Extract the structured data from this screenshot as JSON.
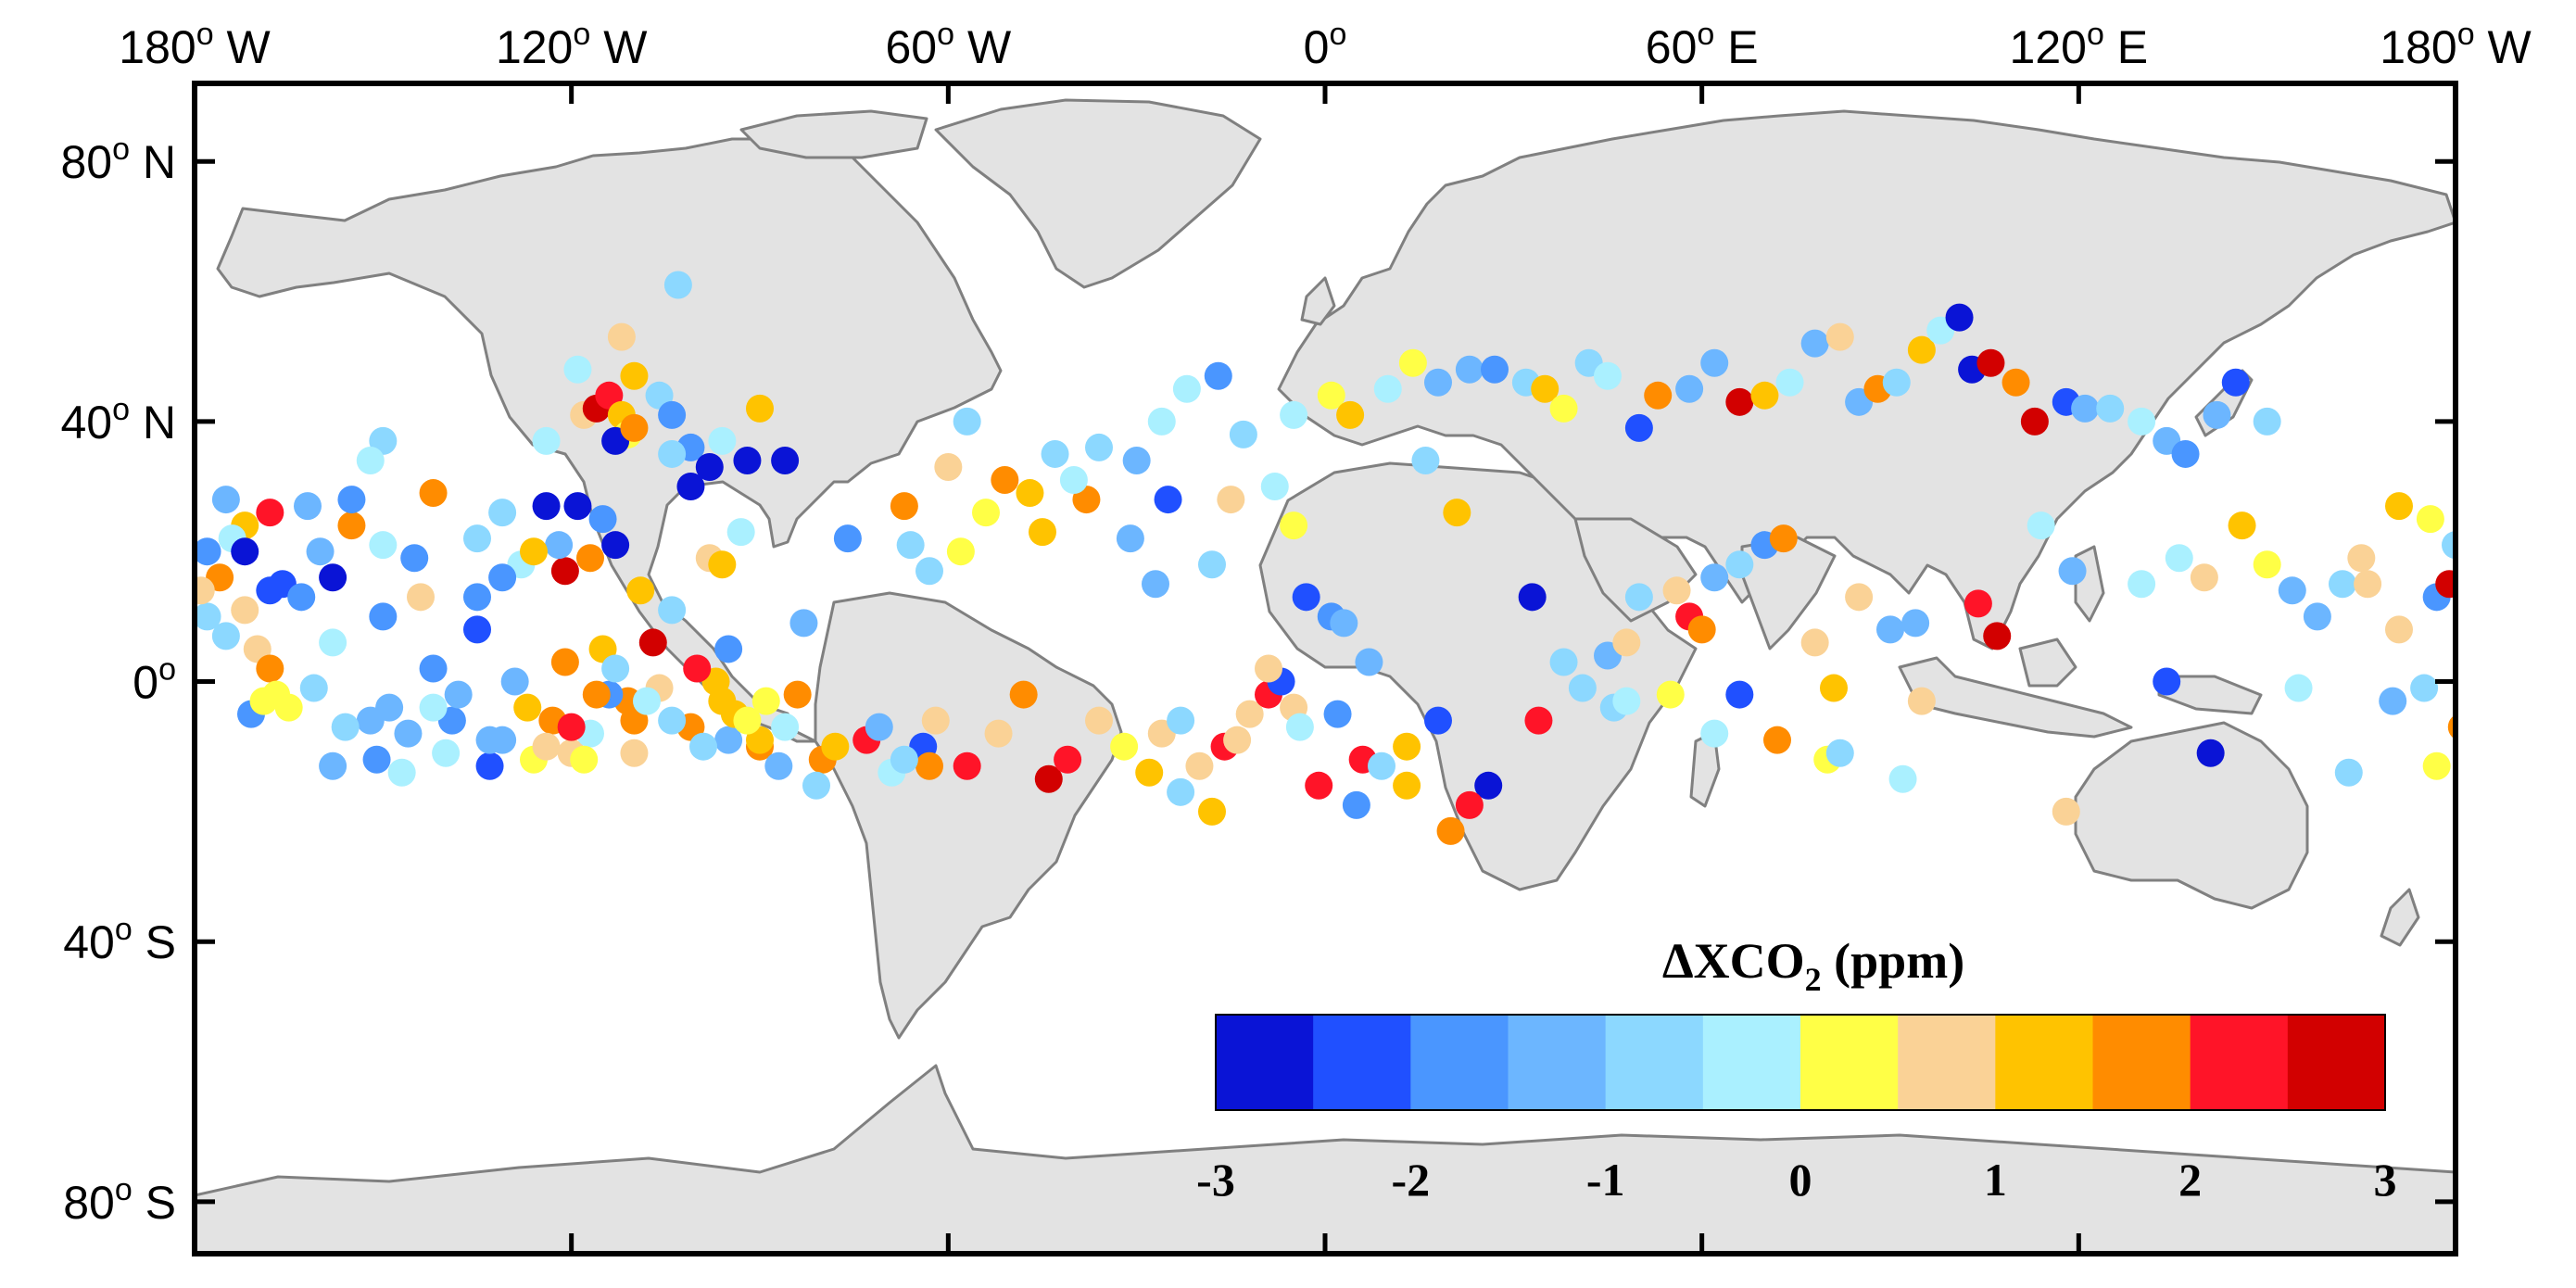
{
  "map": {
    "projection": "equirectangular",
    "lon_range": [
      -180,
      180
    ],
    "lat_range": [
      -88,
      92
    ],
    "land_color": "#e3e3e3",
    "coastline_color": "#808080",
    "ocean_color": "#ffffff",
    "x_ticks": [
      {
        "value": -180,
        "label": "180",
        "sup": "o",
        "suffix": " W"
      },
      {
        "value": -120,
        "label": "120",
        "sup": "o",
        "suffix": " W"
      },
      {
        "value": -60,
        "label": "60",
        "sup": "o",
        "suffix": " W"
      },
      {
        "value": 0,
        "label": "0",
        "sup": "o",
        "suffix": ""
      },
      {
        "value": 60,
        "label": "60",
        "sup": "o",
        "suffix": " E"
      },
      {
        "value": 120,
        "label": "120",
        "sup": "o",
        "suffix": " E"
      },
      {
        "value": 180,
        "label": "180",
        "sup": "o",
        "suffix": " W"
      }
    ],
    "y_ticks": [
      {
        "value": 80,
        "label": "80",
        "sup": "o",
        "suffix": " N"
      },
      {
        "value": 40,
        "label": "40",
        "sup": "o",
        "suffix": " N"
      },
      {
        "value": 0,
        "label": "0",
        "sup": "o",
        "suffix": ""
      },
      {
        "value": -40,
        "label": "40",
        "sup": "o",
        "suffix": " S"
      },
      {
        "value": -80,
        "label": "80",
        "sup": "o",
        "suffix": " S"
      }
    ]
  },
  "colorbar": {
    "title_delta": "Δ",
    "title_main": "XCO",
    "title_sub": "2",
    "title_unit": " (ppm)",
    "min": -3,
    "max": 3,
    "colors": [
      "#0a14d6",
      "#2050ff",
      "#4a96ff",
      "#6cb6ff",
      "#8cd8ff",
      "#aaf0ff",
      "#ffff46",
      "#fad296",
      "#ffc300",
      "#ff8c00",
      "#ff1428",
      "#d20000"
    ],
    "tick_values": [
      -3,
      -2,
      -1,
      0,
      1,
      2,
      3
    ],
    "tick_labels": [
      "-3",
      "-2",
      "-1",
      "0",
      "1",
      "2",
      "3"
    ]
  },
  "chart_data": {
    "type": "scatter",
    "x_name": "longitude",
    "y_name": "latitude",
    "value_name": "ΔXCO2 (ppm)",
    "points": [
      [
        -118,
        41,
        0.8
      ],
      [
        -116,
        42,
        2.6
      ],
      [
        -114,
        44,
        2.1
      ],
      [
        -112,
        41,
        1.4
      ],
      [
        -111,
        38,
        0.2
      ],
      [
        -113,
        37,
        -3.0
      ],
      [
        -110,
        39,
        1.8
      ],
      [
        -106,
        44,
        -0.7
      ],
      [
        -104,
        41,
        -1.6
      ],
      [
        -101,
        36,
        -1.9
      ],
      [
        -98,
        33,
        -2.9
      ],
      [
        -96,
        37,
        -0.2
      ],
      [
        -92,
        34,
        -2.8
      ],
      [
        -86,
        34,
        -3.0
      ],
      [
        -101,
        30,
        -3.0
      ],
      [
        -115,
        25,
        -1.6
      ],
      [
        -113,
        21,
        -2.8
      ],
      [
        -119,
        27,
        -2.7
      ],
      [
        -121,
        17,
        2.7
      ],
      [
        -111,
        -3,
        1.6
      ],
      [
        -115,
        5,
        1.0
      ],
      [
        -107,
        6,
        3.0
      ],
      [
        -93,
        23,
        -0.5
      ],
      [
        -124,
        37,
        -0.2
      ],
      [
        -112,
        53,
        0.8
      ],
      [
        -110,
        47,
        1.2
      ],
      [
        -103,
        61,
        -0.8
      ],
      [
        -119,
        48,
        -0.1
      ],
      [
        -104,
        35,
        -0.8
      ],
      [
        -90,
        42,
        1.3
      ],
      [
        -98,
        19,
        0.9
      ],
      [
        -96,
        18,
        1.2
      ],
      [
        -150,
        37,
        -0.9
      ],
      [
        -155,
        24,
        1.6
      ],
      [
        -158,
        16,
        -3.0
      ],
      [
        -166,
        15,
        -2.4
      ],
      [
        -168,
        14,
        -2.4
      ],
      [
        -172,
        24,
        1.2
      ],
      [
        -178,
        10,
        -0.9
      ],
      [
        -176,
        16,
        1.8
      ],
      [
        -174,
        22,
        -0.4
      ],
      [
        -170,
        5,
        0.7
      ],
      [
        -163,
        13,
        -2.0
      ],
      [
        -160,
        20,
        -1.2
      ],
      [
        -150,
        21,
        -0.2
      ],
      [
        -145,
        19,
        -1.7
      ],
      [
        -142,
        2,
        -1.9
      ],
      [
        -149,
        -4,
        -1.2
      ],
      [
        -131,
        26,
        -0.7
      ],
      [
        -135,
        8,
        -2.1
      ],
      [
        -131,
        -9,
        -1.4
      ],
      [
        -127,
        -4,
        1.0
      ],
      [
        -123,
        -6,
        1.8
      ],
      [
        -121,
        3,
        1.7
      ],
      [
        -120,
        -11,
        0.9
      ],
      [
        -117,
        -8,
        -0.1
      ],
      [
        -114,
        -2,
        -1.9
      ],
      [
        -110,
        -6,
        1.7
      ],
      [
        -101,
        -7,
        1.6
      ],
      [
        -95,
        -9,
        -1.3
      ],
      [
        -90,
        -10,
        1.7
      ],
      [
        -80,
        -12,
        1.9
      ],
      [
        -64,
        -10,
        -2.2
      ],
      [
        -63,
        -13,
        1.7
      ],
      [
        -44,
        -15,
        3.0
      ],
      [
        -26,
        -8,
        0.5
      ],
      [
        -23,
        -6,
        -0.6
      ],
      [
        -20,
        -13,
        0.7
      ],
      [
        -16,
        -10,
        2.0
      ],
      [
        -12,
        -5,
        0.5
      ],
      [
        -9,
        -2,
        2.3
      ],
      [
        -7,
        0,
        -2.3
      ],
      [
        -5,
        -4,
        0.6
      ],
      [
        2,
        -5,
        -1.6
      ],
      [
        6,
        -12,
        2.3
      ],
      [
        13,
        -16,
        1.3
      ],
      [
        26,
        -16,
        -2.8
      ],
      [
        20,
        -23,
        1.6
      ],
      [
        34,
        -6,
        2.2
      ],
      [
        46,
        -4,
        -0.7
      ],
      [
        48,
        -3,
        -0.3
      ],
      [
        55,
        -2,
        0.4
      ],
      [
        62,
        -8,
        -0.4
      ],
      [
        66,
        -2,
        -2.2
      ],
      [
        72,
        -9,
        1.7
      ],
      [
        80,
        -12,
        0.0
      ],
      [
        82,
        -11,
        -1.0
      ],
      [
        95,
        -3,
        0.7
      ],
      [
        92,
        -15,
        -0.3
      ],
      [
        118,
        -20,
        0.9
      ],
      [
        134,
        0,
        -2.3
      ],
      [
        141,
        -11,
        -3.0
      ],
      [
        155,
        -1,
        -0.4
      ],
      [
        163,
        -14,
        -0.6
      ],
      [
        177,
        -13,
        0.3
      ],
      [
        181,
        -7,
        1.7
      ],
      [
        182,
        -2,
        -0.9
      ],
      [
        175,
        -1,
        -0.7
      ],
      [
        170,
        -3,
        -1.5
      ],
      [
        -171,
        -5,
        -2.0
      ],
      [
        -169,
        -3,
        0.3
      ],
      [
        -161,
        -1,
        -0.6
      ],
      [
        -158,
        -13,
        -1.3
      ],
      [
        -152,
        -6,
        -1.3
      ],
      [
        -146,
        -8,
        -1.5
      ],
      [
        -140,
        -11,
        -0.5
      ],
      [
        -133,
        -13,
        -2.4
      ],
      [
        -139,
        -6,
        -1.9
      ],
      [
        -126,
        -12,
        0.3
      ],
      [
        -118,
        -12,
        0.2
      ],
      [
        -110,
        -11,
        0.6
      ],
      [
        -106,
        -1,
        0.9
      ],
      [
        -97,
        0,
        1.2
      ],
      [
        -94,
        -5,
        1.4
      ],
      [
        -90,
        -9,
        1.0
      ],
      [
        -83,
        9,
        -1.1
      ],
      [
        -76,
        22,
        -1.6
      ],
      [
        -67,
        27,
        1.8
      ],
      [
        -66,
        21,
        -0.7
      ],
      [
        -60,
        33,
        0.5
      ],
      [
        -57,
        40,
        -1.0
      ],
      [
        -45,
        23,
        1.1
      ],
      [
        -38,
        28,
        1.9
      ],
      [
        -31,
        22,
        -1.2
      ],
      [
        -27,
        15,
        -1.2
      ],
      [
        -25,
        28,
        -2.2
      ],
      [
        -18,
        18,
        -0.8
      ],
      [
        -15,
        28,
        0.8
      ],
      [
        -8,
        30,
        -0.3
      ],
      [
        -5,
        24,
        0.3
      ],
      [
        -3,
        13,
        -2.2
      ],
      [
        1,
        10,
        -1.6
      ],
      [
        3,
        9,
        -1.4
      ],
      [
        7,
        3,
        -1.1
      ],
      [
        16,
        34,
        -0.7
      ],
      [
        21,
        26,
        1.1
      ],
      [
        33,
        13,
        -2.8
      ],
      [
        38,
        3,
        -1.0
      ],
      [
        41,
        -1,
        -0.8
      ],
      [
        45,
        4,
        -1.3
      ],
      [
        48,
        6,
        0.7
      ],
      [
        50,
        13,
        -0.6
      ],
      [
        56,
        14,
        0.5
      ],
      [
        58,
        10,
        2.3
      ],
      [
        60,
        8,
        1.6
      ],
      [
        62,
        16,
        -1.1
      ],
      [
        66,
        18,
        -0.8
      ],
      [
        70,
        21,
        -1.8
      ],
      [
        73,
        22,
        1.6
      ],
      [
        78,
        6,
        0.5
      ],
      [
        81,
        -1,
        1.0
      ],
      [
        85,
        13,
        0.8
      ],
      [
        90,
        8,
        -1.3
      ],
      [
        94,
        9,
        -1.5
      ],
      [
        104,
        12,
        2.0
      ],
      [
        107,
        7,
        2.8
      ],
      [
        114,
        24,
        -0.4
      ],
      [
        119,
        17,
        -1.1
      ],
      [
        130,
        15,
        -0.2
      ],
      [
        136,
        19,
        -0.4
      ],
      [
        140,
        16,
        0.5
      ],
      [
        146,
        24,
        1.3
      ],
      [
        150,
        18,
        0.4
      ],
      [
        154,
        14,
        -1.3
      ],
      [
        158,
        10,
        -1.5
      ],
      [
        162,
        15,
        -0.6
      ],
      [
        166,
        15,
        0.9
      ],
      [
        171,
        8,
        0.5
      ],
      [
        177,
        13,
        -1.6
      ],
      [
        179,
        15,
        2.6
      ],
      [
        180,
        21,
        -1.0
      ],
      [
        176,
        25,
        0.2
      ],
      [
        171,
        27,
        1.0
      ],
      [
        165,
        19,
        0.6
      ],
      [
        -172,
        11,
        0.6
      ],
      [
        -168,
        2,
        1.7
      ],
      [
        -165,
        -4,
        0.0
      ],
      [
        -158,
        6,
        -0.2
      ],
      [
        -150,
        10,
        -1.7
      ],
      [
        -144,
        13,
        0.9
      ],
      [
        -135,
        13,
        -1.7
      ],
      [
        -128,
        18,
        -0.4
      ],
      [
        -122,
        21,
        -1.3
      ],
      [
        -117,
        19,
        1.6
      ],
      [
        -109,
        14,
        1.3
      ],
      [
        -104,
        11,
        -0.9
      ],
      [
        -100,
        2,
        2.4
      ],
      [
        -96,
        -3,
        1.0
      ],
      [
        -92,
        -6,
        0.4
      ],
      [
        -87,
        -13,
        -1.2
      ],
      [
        -81,
        -16,
        -0.8
      ],
      [
        -73,
        -9,
        2.1
      ],
      [
        -69,
        -14,
        -0.3
      ],
      [
        -63,
        17,
        -0.9
      ],
      [
        -58,
        20,
        0.3
      ],
      [
        -54,
        26,
        0.2
      ],
      [
        -51,
        31,
        1.5
      ],
      [
        -47,
        29,
        1.3
      ],
      [
        -43,
        35,
        -0.9
      ],
      [
        -40,
        31,
        -0.2
      ],
      [
        -36,
        36,
        -1.0
      ],
      [
        -30,
        34,
        -1.2
      ],
      [
        -26,
        40,
        -0.3
      ],
      [
        -22,
        45,
        -0.5
      ],
      [
        -17,
        47,
        -1.6
      ],
      [
        -13,
        38,
        -0.6
      ],
      [
        -5,
        41,
        -0.2
      ],
      [
        1,
        44,
        0.1
      ],
      [
        4,
        41,
        1.1
      ],
      [
        10,
        45,
        -0.5
      ],
      [
        14,
        49,
        0.4
      ],
      [
        18,
        46,
        -1.1
      ],
      [
        23,
        48,
        -1.4
      ],
      [
        27,
        48,
        -1.7
      ],
      [
        32,
        46,
        -1.0
      ],
      [
        35,
        45,
        1.3
      ],
      [
        38,
        42,
        0.2
      ],
      [
        42,
        49,
        -0.8
      ],
      [
        45,
        47,
        -0.4
      ],
      [
        50,
        39,
        -2.2
      ],
      [
        53,
        44,
        1.6
      ],
      [
        58,
        45,
        -1.2
      ],
      [
        62,
        49,
        -1.5
      ],
      [
        66,
        43,
        2.8
      ],
      [
        70,
        44,
        1.4
      ],
      [
        74,
        46,
        -0.5
      ],
      [
        78,
        52,
        -1.1
      ],
      [
        82,
        53,
        0.9
      ],
      [
        85,
        43,
        -1.2
      ],
      [
        88,
        45,
        1.7
      ],
      [
        91,
        46,
        -0.7
      ],
      [
        95,
        51,
        1.1
      ],
      [
        98,
        54,
        -0.3
      ],
      [
        101,
        56,
        -2.8
      ],
      [
        103,
        48,
        -3.0
      ],
      [
        106,
        49,
        2.6
      ],
      [
        110,
        46,
        1.9
      ],
      [
        113,
        40,
        3.0
      ],
      [
        118,
        43,
        -2.2
      ],
      [
        121,
        42,
        -1.1
      ],
      [
        125,
        42,
        -1.0
      ],
      [
        130,
        40,
        -0.4
      ],
      [
        134,
        37,
        -1.3
      ],
      [
        137,
        35,
        -1.8
      ],
      [
        142,
        41,
        -1.5
      ],
      [
        145,
        46,
        -2.1
      ],
      [
        150,
        40,
        -0.9
      ],
      [
        -142,
        29,
        1.9
      ],
      [
        -135,
        22,
        -0.8
      ],
      [
        -131,
        16,
        -1.8
      ],
      [
        -126,
        20,
        1.1
      ],
      [
        -124,
        27,
        -2.6
      ],
      [
        -152,
        34,
        -0.3
      ],
      [
        -155,
        28,
        -1.9
      ],
      [
        -162,
        27,
        -1.3
      ],
      [
        -168,
        26,
        2.3
      ],
      [
        -172,
        20,
        -2.9
      ],
      [
        -175,
        28,
        -1.1
      ],
      [
        -179,
        14,
        0.5
      ],
      [
        -178,
        20,
        -1.8
      ],
      [
        -175,
        7,
        -0.8
      ],
      [
        -167,
        -2,
        0.3
      ],
      [
        -156,
        -7,
        -0.6
      ],
      [
        -151,
        -12,
        -1.9
      ],
      [
        -147,
        -14,
        -0.3
      ],
      [
        -142,
        -4,
        -0.4
      ],
      [
        -138,
        -2,
        -1.2
      ],
      [
        -133,
        -9,
        -1.1
      ],
      [
        -129,
        0,
        -1.3
      ],
      [
        -124,
        -10,
        0.5
      ],
      [
        -120,
        -7,
        2.2
      ],
      [
        -116,
        -2,
        1.5
      ],
      [
        -113,
        2,
        -0.6
      ],
      [
        -108,
        -3,
        -0.4
      ],
      [
        -104,
        -6,
        -1.0
      ],
      [
        -99,
        -10,
        -0.6
      ],
      [
        -95,
        5,
        -1.7
      ],
      [
        -89,
        -3,
        0.3
      ],
      [
        -86,
        -7,
        -0.2
      ],
      [
        -84,
        -2,
        1.6
      ],
      [
        -78,
        -10,
        1.4
      ],
      [
        -71,
        -7,
        -1.4
      ],
      [
        -67,
        -12,
        -1.0
      ],
      [
        -62,
        -6,
        0.5
      ],
      [
        -57,
        -13,
        2.4
      ],
      [
        -52,
        -8,
        0.8
      ],
      [
        -48,
        -2,
        1.9
      ],
      [
        -41,
        -12,
        2.2
      ],
      [
        -36,
        -6,
        0.9
      ],
      [
        -32,
        -10,
        0.3
      ],
      [
        -28,
        -14,
        1.4
      ],
      [
        -23,
        -17,
        -0.9
      ],
      [
        -18,
        -20,
        1.2
      ],
      [
        -14,
        -9,
        0.7
      ],
      [
        -9,
        2,
        0.9
      ],
      [
        -4,
        -7,
        -0.4
      ],
      [
        -1,
        -16,
        2.1
      ],
      [
        5,
        -19,
        -1.9
      ],
      [
        9,
        -13,
        -1.0
      ],
      [
        13,
        -10,
        1.0
      ],
      [
        18,
        -6,
        -2.1
      ],
      [
        23,
        -19,
        2.0
      ]
    ]
  }
}
